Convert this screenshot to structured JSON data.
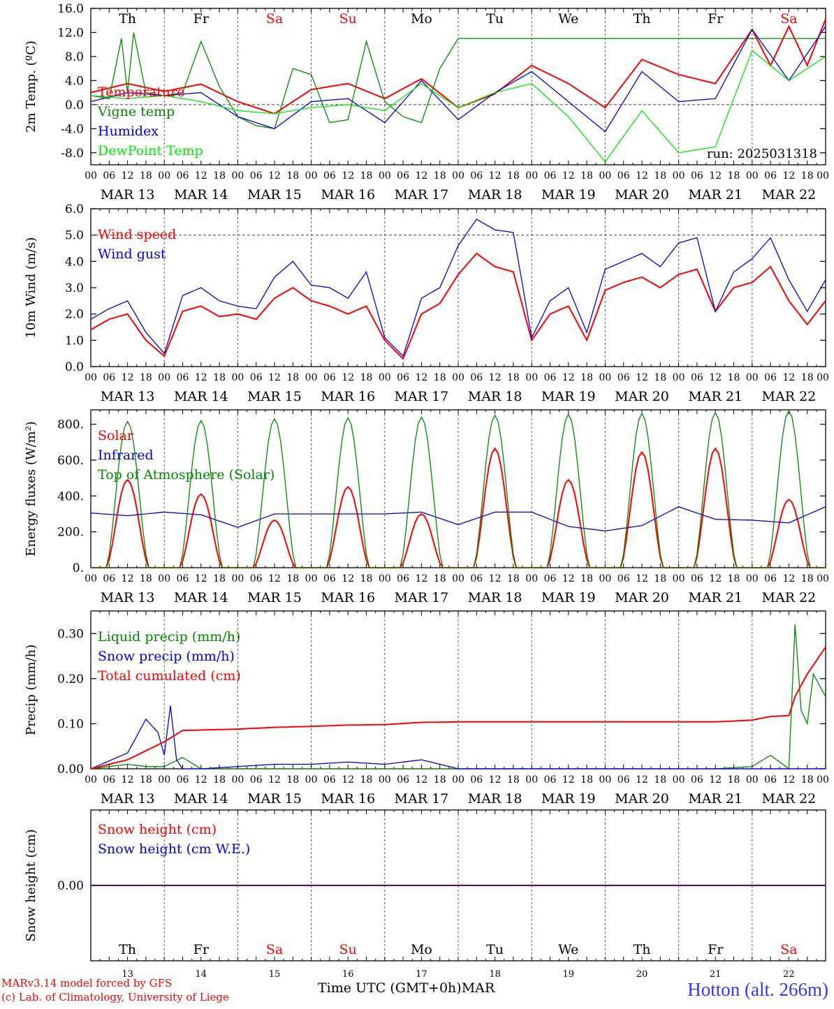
{
  "chart_data": [
    {
      "type": "line",
      "ylabel": "2m Temp. (ºC)",
      "ylim": [
        -10,
        16
      ],
      "yticks": [
        "16.0",
        "12.0",
        "8.0",
        "4.0",
        "0.0",
        "-4.0",
        "-8.0"
      ],
      "ytick_values": [
        16,
        12,
        8,
        4,
        0,
        -4,
        -8
      ],
      "reference_line": 0,
      "weekday_labels": [
        "Th",
        "Fr",
        "Sa",
        "Su",
        "Mo",
        "Tu",
        "We",
        "Th",
        "Fr",
        "Sa"
      ],
      "annotation": "run: 2025031318",
      "series": [
        {
          "name": "Temperature",
          "color": "#ff0000",
          "x": [
            0,
            12,
            24,
            36,
            48,
            60,
            72,
            84,
            96,
            108,
            120,
            132,
            144,
            156,
            168,
            180,
            192,
            204,
            216,
            222,
            228,
            234,
            240
          ],
          "values": [
            2.0,
            3.5,
            2.2,
            3.4,
            0.5,
            -1.5,
            2.5,
            3.5,
            1.0,
            4.3,
            -0.5,
            1.8,
            6.5,
            3.5,
            -0.5,
            7.5,
            5.0,
            3.5,
            12.5,
            6.5,
            13.0,
            6.5,
            14.2
          ]
        },
        {
          "name": "Vigne temp",
          "color": "#008800",
          "x": [
            0,
            6,
            10,
            12,
            14,
            18,
            24,
            30,
            36,
            42,
            48,
            54,
            60,
            66,
            72,
            78,
            84,
            90,
            96,
            102,
            108,
            114,
            120
          ],
          "values": [
            1.5,
            1.0,
            11.0,
            2.0,
            12.0,
            2.0,
            1.5,
            2.0,
            10.5,
            3.0,
            -2.0,
            -3.5,
            -4.0,
            6.0,
            5.0,
            -3.0,
            -2.5,
            10.5,
            0.5,
            -2.0,
            -3.0,
            6.0,
            11.0
          ]
        },
        {
          "name": "Humidex",
          "color": "#0000dd",
          "x": [
            0,
            12,
            24,
            36,
            48,
            60,
            72,
            84,
            96,
            108,
            120,
            132,
            144,
            156,
            168,
            180,
            192,
            204,
            216,
            228,
            240
          ],
          "values": [
            0.5,
            2.0,
            1.5,
            2.0,
            -2.0,
            -4.0,
            0.5,
            1.0,
            -3.0,
            4.0,
            -2.5,
            2.0,
            5.5,
            0.5,
            -4.5,
            5.5,
            0.5,
            1.0,
            12.5,
            4.0,
            13.0
          ]
        },
        {
          "name": "DewPoint Temp",
          "color": "#00ee00",
          "x": [
            0,
            12,
            24,
            36,
            48,
            60,
            72,
            84,
            96,
            108,
            120,
            132,
            144,
            156,
            168,
            180,
            192,
            204,
            216,
            228,
            240
          ],
          "values": [
            1.5,
            1.0,
            1.5,
            0.5,
            -1.0,
            -1.5,
            -0.5,
            0.0,
            -1.0,
            3.5,
            -0.5,
            2.0,
            3.5,
            -2.0,
            -9.5,
            -1.0,
            -8.0,
            -7.0,
            9.0,
            4.0,
            8.0
          ]
        }
      ]
    },
    {
      "type": "line",
      "ylabel": "10m Wind (m/s)",
      "ylim": [
        0,
        6
      ],
      "yticks": [
        "6.0",
        "5.0",
        "4.0",
        "3.0",
        "2.0",
        "1.0",
        "0.0"
      ],
      "ytick_values": [
        6,
        5,
        4,
        3,
        2,
        1,
        0
      ],
      "reference_line": 5,
      "series": [
        {
          "name": "Wind speed",
          "color": "#ff0000",
          "x": [
            0,
            6,
            12,
            18,
            24,
            30,
            36,
            42,
            48,
            54,
            60,
            66,
            72,
            78,
            84,
            90,
            96,
            102,
            108,
            114,
            120,
            126,
            132,
            138,
            144,
            150,
            156,
            162,
            168,
            174,
            180,
            186,
            192,
            198,
            204,
            210,
            216,
            222,
            228,
            234,
            240
          ],
          "values": [
            1.4,
            1.8,
            2.0,
            1.0,
            0.4,
            2.1,
            2.3,
            1.9,
            2.0,
            1.8,
            2.6,
            3.0,
            2.5,
            2.3,
            2.0,
            2.3,
            1.0,
            0.3,
            2.0,
            2.4,
            3.5,
            4.3,
            3.8,
            3.6,
            1.0,
            2.0,
            2.3,
            1.0,
            2.9,
            3.2,
            3.4,
            3.0,
            3.5,
            3.7,
            2.1,
            3.0,
            3.2,
            3.8,
            2.5,
            1.6,
            2.5
          ]
        },
        {
          "name": "Wind gust",
          "color": "#0000dd",
          "x": [
            0,
            6,
            12,
            18,
            24,
            30,
            36,
            42,
            48,
            54,
            60,
            66,
            72,
            78,
            84,
            90,
            96,
            102,
            108,
            114,
            120,
            126,
            132,
            138,
            144,
            150,
            156,
            162,
            168,
            174,
            180,
            186,
            192,
            198,
            204,
            210,
            216,
            222,
            228,
            234,
            240
          ],
          "values": [
            1.8,
            2.2,
            2.5,
            1.3,
            0.5,
            2.7,
            3.0,
            2.5,
            2.3,
            2.2,
            3.4,
            4.0,
            3.1,
            3.0,
            2.6,
            3.6,
            1.1,
            0.4,
            2.6,
            3.0,
            4.6,
            5.6,
            5.2,
            5.1,
            1.1,
            2.5,
            3.0,
            1.3,
            3.7,
            4.0,
            4.3,
            3.8,
            4.7,
            4.9,
            2.1,
            3.6,
            4.1,
            4.9,
            3.3,
            2.1,
            3.3
          ]
        }
      ]
    },
    {
      "type": "line",
      "ylabel": "Energy fluxes (W/m²)",
      "ylim": [
        0,
        880
      ],
      "yticks": [
        "800.",
        "600.",
        "400.",
        "200.",
        "0."
      ],
      "ytick_values": [
        800,
        600,
        400,
        200,
        0
      ],
      "series": [
        {
          "name": "Solar",
          "color": "#ff0000",
          "daily_peak": [
            490,
            410,
            265,
            450,
            300,
            665,
            490,
            645,
            665,
            380
          ]
        },
        {
          "name": "Infrared",
          "color": "#0000dd",
          "x": [
            0,
            12,
            24,
            36,
            48,
            60,
            72,
            84,
            96,
            108,
            120,
            132,
            144,
            156,
            168,
            180,
            192,
            204,
            216,
            228,
            240
          ],
          "values": [
            305,
            290,
            310,
            295,
            225,
            300,
            300,
            300,
            300,
            310,
            240,
            310,
            310,
            230,
            205,
            235,
            340,
            270,
            265,
            250,
            340
          ]
        },
        {
          "name": "Top of Atmosphere (Solar)",
          "color": "#008800",
          "daily_peak": [
            815,
            820,
            830,
            835,
            840,
            850,
            855,
            860,
            865,
            875
          ]
        }
      ]
    },
    {
      "type": "line",
      "ylabel": "Precip (mm/h)",
      "ylim": [
        0,
        0.35
      ],
      "yticks": [
        "0.30",
        "0.20",
        "0.10",
        "0.00"
      ],
      "ytick_values": [
        0.3,
        0.2,
        0.1,
        0.0
      ],
      "series": [
        {
          "name": "Liquid precip (mm/h)",
          "color": "#008800",
          "x": [
            0,
            12,
            18,
            24,
            30,
            36,
            48,
            60,
            72,
            84,
            96,
            108,
            120,
            132,
            144,
            156,
            168,
            180,
            192,
            204,
            216,
            222,
            228,
            230,
            232,
            234,
            236,
            240
          ],
          "values": [
            0.0,
            0.01,
            0.005,
            0.005,
            0.025,
            0.0,
            0.0,
            0.0,
            0.0,
            0.0,
            0.0,
            0.0,
            0.0,
            0.0,
            0.0,
            0.0,
            0.0,
            0.0,
            0.0,
            0.0,
            0.005,
            0.03,
            0.0,
            0.32,
            0.13,
            0.1,
            0.21,
            0.16
          ]
        },
        {
          "name": "Snow precip (mm/h)",
          "color": "#0000dd",
          "x": [
            0,
            12,
            18,
            22,
            24,
            26,
            28,
            30,
            36,
            48,
            60,
            72,
            84,
            96,
            108,
            120,
            132,
            144,
            240
          ],
          "values": [
            0.0,
            0.035,
            0.11,
            0.08,
            0.03,
            0.14,
            0.02,
            0.0,
            0.0,
            0.005,
            0.01,
            0.01,
            0.015,
            0.01,
            0.02,
            0.0,
            0.0,
            0.0,
            0.0
          ]
        },
        {
          "name": "Total cumulated (cm)",
          "color": "#ff0000",
          "x": [
            0,
            12,
            18,
            24,
            30,
            36,
            48,
            60,
            72,
            84,
            96,
            108,
            120,
            132,
            144,
            156,
            168,
            180,
            192,
            204,
            216,
            222,
            228,
            230,
            234,
            240
          ],
          "values": [
            0.0,
            0.02,
            0.04,
            0.06,
            0.085,
            0.086,
            0.088,
            0.092,
            0.094,
            0.097,
            0.098,
            0.103,
            0.104,
            0.104,
            0.104,
            0.104,
            0.104,
            0.104,
            0.104,
            0.104,
            0.108,
            0.116,
            0.118,
            0.16,
            0.21,
            0.27
          ]
        }
      ]
    },
    {
      "type": "line",
      "ylabel": "Snow height (cm)",
      "ylim": [
        -1,
        1
      ],
      "yticks": [
        "0.00"
      ],
      "ytick_values": [
        0
      ],
      "series": [
        {
          "name": "Snow height (cm)",
          "color": "#ff0000",
          "x": [
            0,
            240
          ],
          "values": [
            0,
            0
          ]
        },
        {
          "name": "Snow height (cm W.E.)",
          "color": "#0000dd",
          "x": [
            0,
            240
          ],
          "values": [
            0,
            0
          ]
        }
      ]
    }
  ],
  "time_axis": {
    "hours": [
      "00",
      "06",
      "12",
      "18"
    ],
    "last_hour": "00",
    "dates": [
      "MAR 13",
      "MAR 14",
      "MAR 15",
      "MAR 16",
      "MAR 17",
      "MAR 18",
      "MAR 19",
      "MAR 20",
      "MAR 21",
      "MAR 22"
    ],
    "weekday_labels": [
      "Th",
      "Fr",
      "Sa",
      "Su",
      "Mo",
      "Tu",
      "We",
      "Th",
      "Fr",
      "Sa"
    ],
    "weekend_color": "#ff0000",
    "day_numbers": [
      "13",
      "14",
      "15",
      "16",
      "17",
      "18",
      "19",
      "20",
      "21",
      "22"
    ]
  },
  "footer": {
    "model": "MARv3.14 model forced by GFS",
    "credit": "(c) Lab. of Climatology, University of Liege",
    "axis_title": "Time UTC (GMT+0h)",
    "month": "MAR",
    "station": "Hotton (alt. 266m)"
  }
}
